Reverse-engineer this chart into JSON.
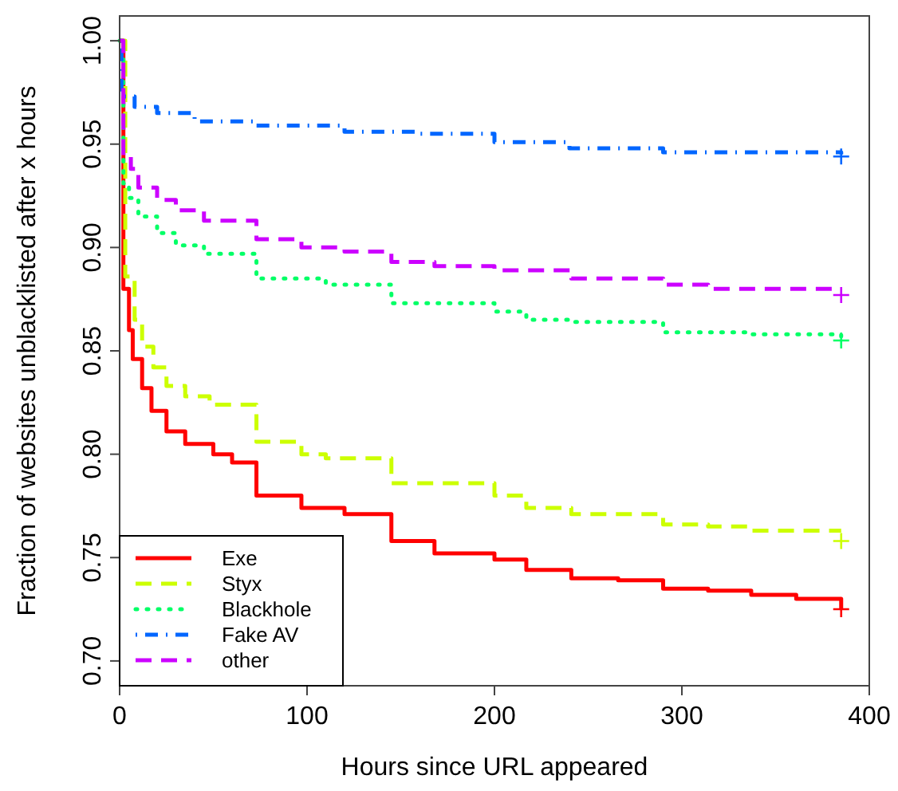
{
  "chart_data": {
    "type": "step",
    "xlabel": "Hours since URL appeared",
    "ylabel": "Fraction of websites unblacklisted after x hours",
    "xlim": [
      0,
      400
    ],
    "xticks": [
      0,
      100,
      200,
      300,
      400
    ],
    "ylim": [
      0.688,
      1.012
    ],
    "yticks": [
      {
        "value": 0.7,
        "label": "0.70"
      },
      0.75,
      {
        "value": 0.8,
        "label": "0.80"
      },
      0.85,
      {
        "value": 0.9,
        "label": "0.90"
      },
      0.95,
      {
        "value": 1,
        "label": "1.00"
      }
    ],
    "grid": false,
    "legend": "bottom left",
    "series": [
      {
        "name": "Exe",
        "color": "#ff0000",
        "line_style": "solid",
        "x": [
          0,
          2,
          5,
          7,
          12,
          17,
          25,
          35,
          50,
          60,
          73,
          97,
          120,
          145,
          168,
          200,
          217,
          241,
          266,
          290,
          314,
          337,
          361,
          385
        ],
        "values": [
          1,
          0.88,
          0.86,
          0.846,
          0.832,
          0.821,
          0.811,
          0.805,
          0.8,
          0.796,
          0.78,
          0.774,
          0.771,
          0.758,
          0.752,
          0.749,
          0.744,
          0.74,
          0.739,
          0.735,
          0.734,
          0.732,
          0.73,
          0.725
        ]
      },
      {
        "name": "Styx",
        "color": "#ccff00",
        "line_style": "dashed",
        "x": [
          0,
          3,
          8,
          12,
          18,
          25,
          35,
          48,
          73,
          97,
          110,
          145,
          200,
          217,
          241,
          290,
          314,
          337,
          385
        ],
        "values": [
          1,
          0.886,
          0.865,
          0.852,
          0.842,
          0.833,
          0.828,
          0.824,
          0.806,
          0.8,
          0.798,
          0.786,
          0.78,
          0.774,
          0.771,
          0.766,
          0.765,
          0.763,
          0.763
        ]
      },
      {
        "name": "Blackhole",
        "color": "#00ff66",
        "line_style": "dotted",
        "x": [
          0,
          2,
          5,
          10,
          20,
          30,
          45,
          73,
          110,
          145,
          200,
          217,
          241,
          290,
          337,
          385
        ],
        "values": [
          1,
          0.931,
          0.924,
          0.915,
          0.907,
          0.901,
          0.897,
          0.885,
          0.882,
          0.873,
          0.869,
          0.865,
          0.864,
          0.859,
          0.858,
          0.857
        ]
      },
      {
        "name": "Fake AV",
        "color": "#0066ff",
        "line_style": "dashdot",
        "x": [
          0,
          1,
          8,
          20,
          40,
          73,
          120,
          160,
          200,
          240,
          290,
          385
        ],
        "values": [
          1,
          0.973,
          0.968,
          0.965,
          0.961,
          0.959,
          0.956,
          0.955,
          0.951,
          0.948,
          0.946,
          0.945
        ]
      },
      {
        "name": "other",
        "color": "#cc00ff",
        "line_style": "dashed",
        "x": [
          0,
          2,
          6,
          10,
          20,
          30,
          45,
          73,
          97,
          120,
          145,
          168,
          200,
          241,
          290,
          314,
          385
        ],
        "values": [
          1,
          0.944,
          0.938,
          0.929,
          0.923,
          0.918,
          0.913,
          0.904,
          0.9,
          0.898,
          0.893,
          0.891,
          0.889,
          0.885,
          0.882,
          0.88,
          0.88
        ]
      },
      {
        "type": "scatter",
        "marker": "cross",
        "color": "#ff0000",
        "x": [
          385
        ],
        "values": [
          0.725
        ]
      },
      {
        "type": "scatter",
        "marker": "cross",
        "color": "#ccff00",
        "x": [
          385
        ],
        "values": [
          0.758
        ]
      },
      {
        "type": "scatter",
        "marker": "cross",
        "color": "#00ff66",
        "x": [
          385
        ],
        "values": [
          0.855
        ]
      },
      {
        "type": "scatter",
        "marker": "cross",
        "color": "#0066ff",
        "x": [
          385
        ],
        "values": [
          0.944
        ]
      },
      {
        "type": "scatter",
        "marker": "cross",
        "color": "#cc00ff",
        "x": [
          385
        ],
        "values": [
          0.877
        ]
      }
    ]
  }
}
